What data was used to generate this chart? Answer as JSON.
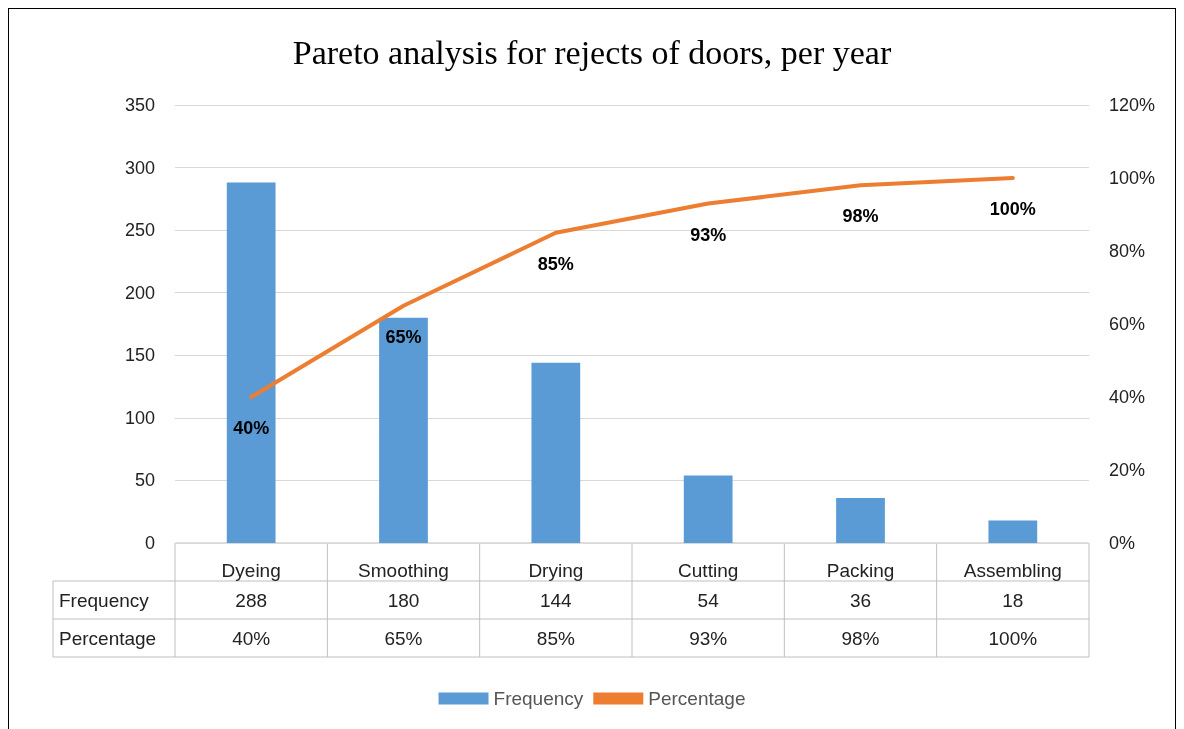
{
  "chart_data": {
    "type": "bar",
    "title": "Pareto analysis for rejects of doors, per year",
    "categories": [
      "Dyeing",
      "Smoothing",
      "Drying",
      "Cutting",
      "Packing",
      "Assembling"
    ],
    "series": [
      {
        "name": "Frequency",
        "color": "#5b9bd5",
        "values": [
          288,
          180,
          144,
          54,
          36,
          18
        ]
      },
      {
        "name": "Percentage",
        "type": "line",
        "axis": "y2",
        "color": "#ed7d31",
        "values": [
          40,
          65,
          85,
          93,
          98,
          100
        ],
        "value_labels": [
          "40%",
          "65%",
          "85%",
          "93%",
          "98%",
          "100%"
        ]
      }
    ],
    "ylim": [
      0,
      350
    ],
    "yticks": [
      0,
      50,
      100,
      150,
      200,
      250,
      300,
      350
    ],
    "y2lim": [
      0,
      120
    ],
    "y2ticks": [
      {
        "value": 0,
        "label": "0%"
      },
      {
        "value": 20,
        "label": "20%"
      },
      {
        "value": 40,
        "label": "40%"
      },
      {
        "value": 60,
        "label": "60%"
      },
      {
        "value": 80,
        "label": "80%"
      },
      {
        "value": 100,
        "label": "100%"
      },
      {
        "value": 120,
        "label": "120%"
      }
    ],
    "grid": "y",
    "legend": "bottom",
    "marker": "none",
    "line_style": "solid",
    "data_labels": true
  }
}
